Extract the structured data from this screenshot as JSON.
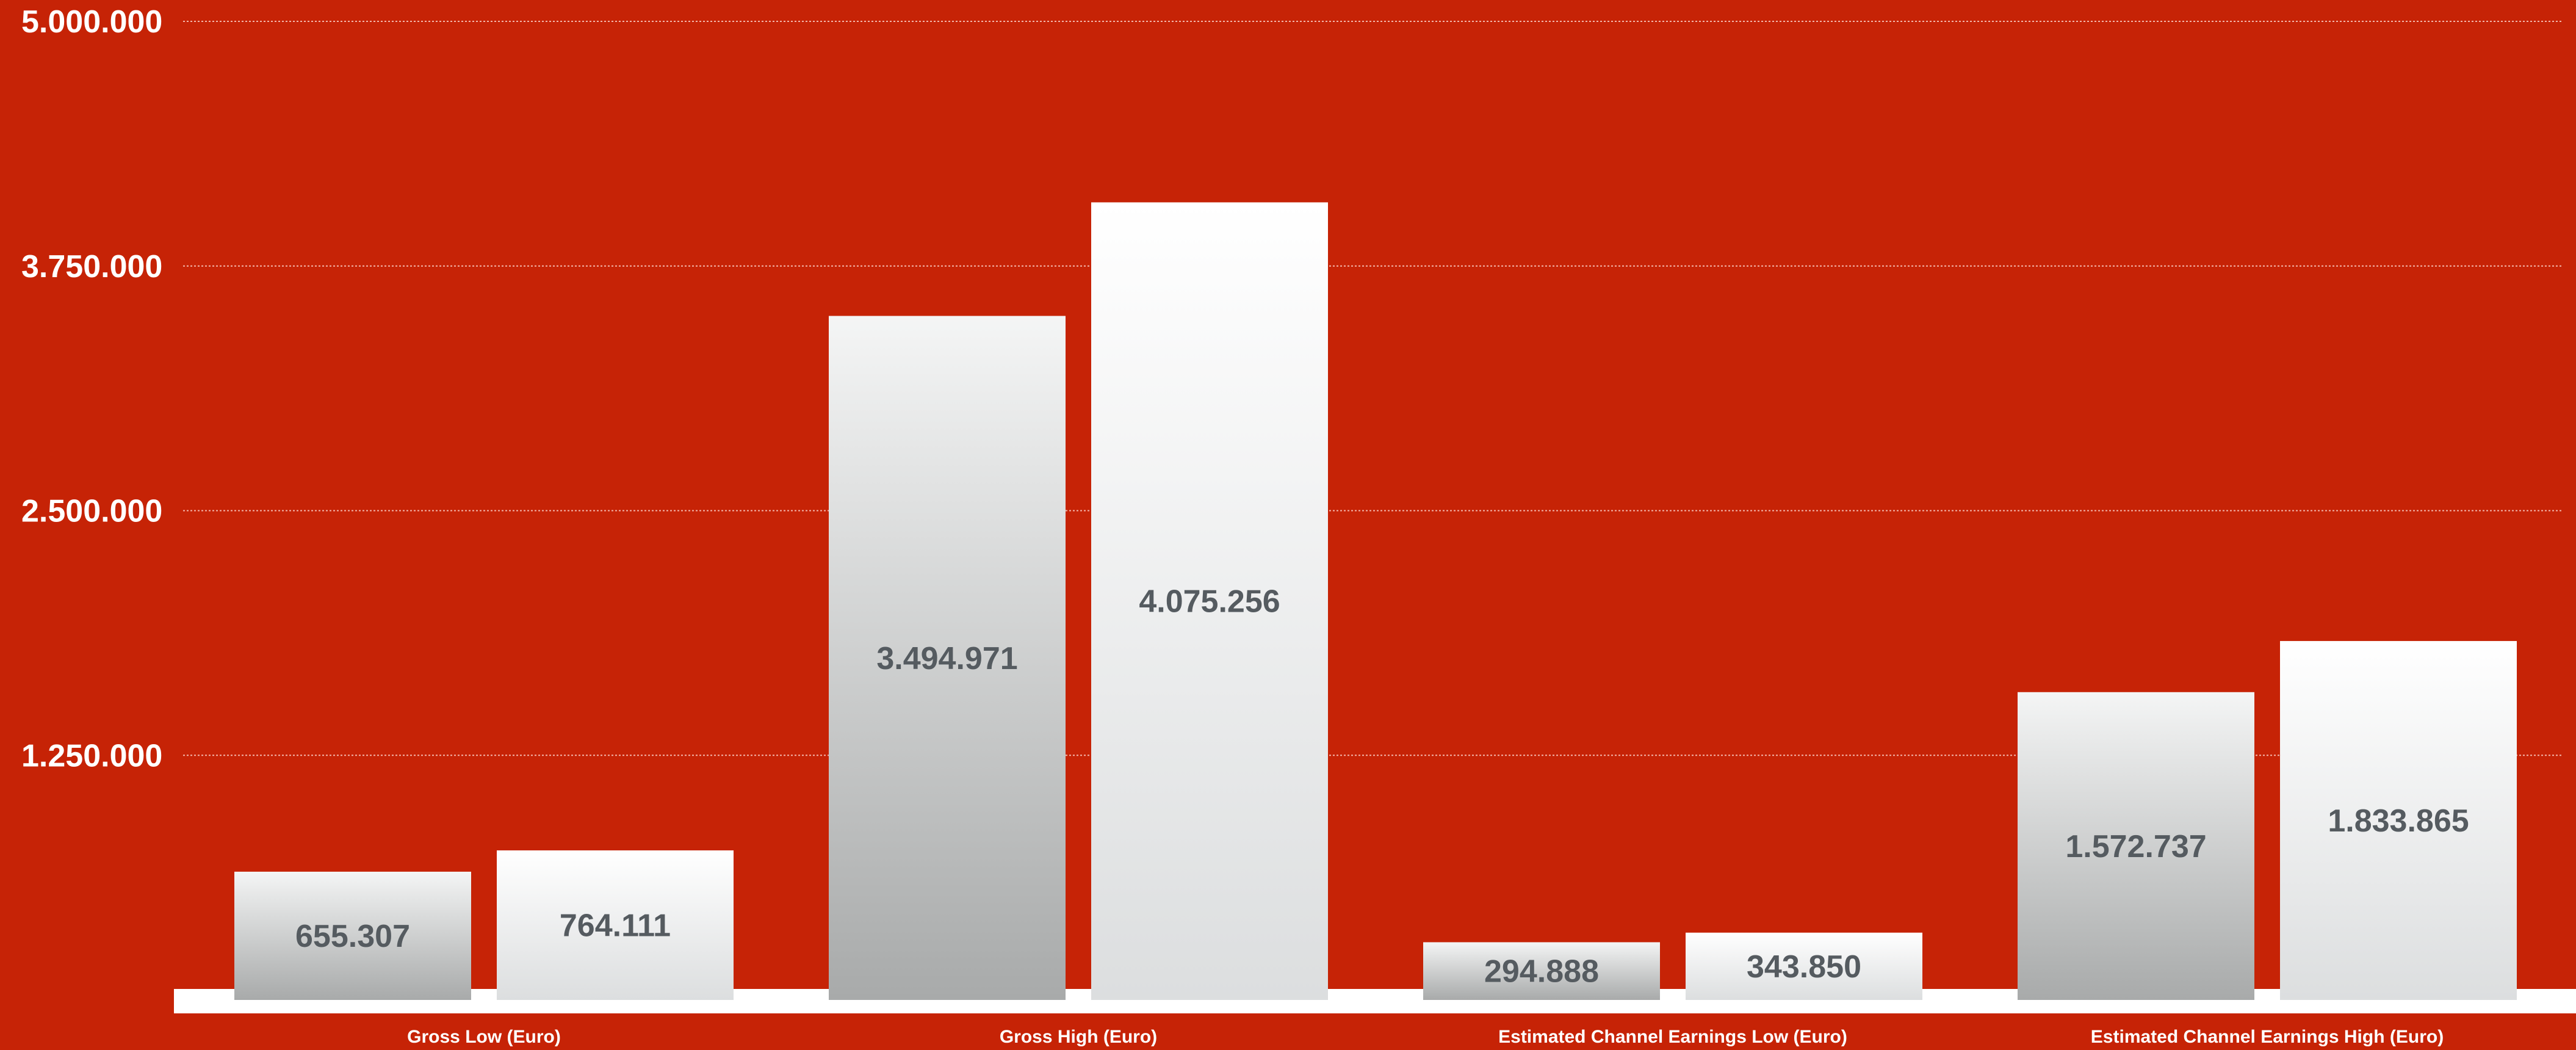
{
  "chart_data": {
    "type": "bar",
    "categories": [
      "Gross Low (Euro)",
      "Gross High (Euro)",
      "Estimated Channel Earnings Low (Euro)",
      "Estimated Channel Earnings High (Euro)"
    ],
    "series": [
      {
        "values": [
          655307,
          3494971,
          294888,
          1572737
        ],
        "labels": [
          "655.307",
          "3.494.971",
          "294.888",
          "1.572.737"
        ]
      },
      {
        "values": [
          764111,
          4075256,
          343850,
          1833865
        ],
        "labels": [
          "764.111",
          "4.075.256",
          "343.850",
          "1.833.865"
        ]
      }
    ],
    "ylim": [
      0,
      5000000
    ],
    "yticks": [
      1250000,
      2500000,
      3750000,
      5000000
    ],
    "ytick_labels": [
      "1.250.000",
      "2.500.000",
      "3.750.000",
      "5.000.000"
    ],
    "title": "",
    "xlabel": "",
    "ylabel": "",
    "grid": true,
    "legend": "none",
    "colors": {
      "background": "#c62306",
      "series1_top": "#f4f5f5",
      "series1_bottom": "#a8aaaa",
      "series2_top": "#ffffff",
      "series2_bottom": "#dcdedf",
      "label": "#555b60",
      "axis_text": "#ffffff"
    }
  }
}
